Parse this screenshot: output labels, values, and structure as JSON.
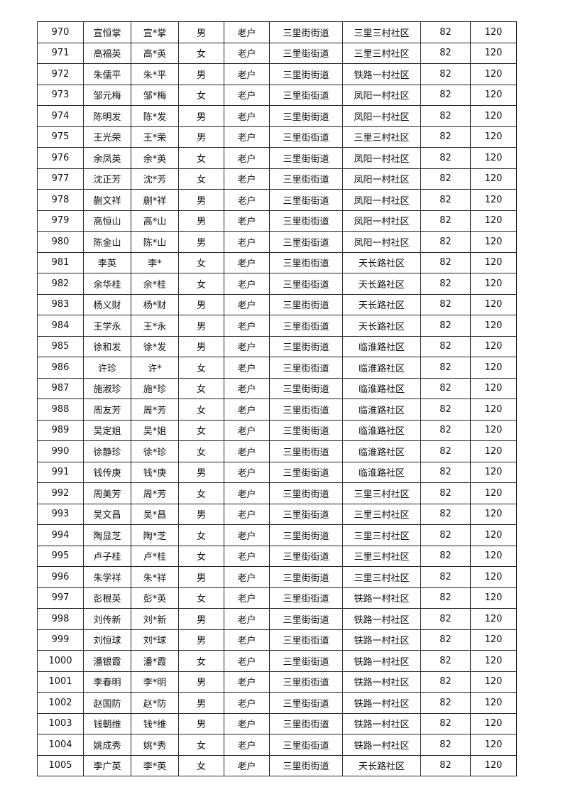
{
  "rows": [
    [
      "970",
      "宣恒掌",
      "宣*掌",
      "男",
      "老户",
      "三里街街道",
      "三里三村社区",
      "82",
      "120"
    ],
    [
      "971",
      "高福英",
      "高*英",
      "女",
      "老户",
      "三里街街道",
      "三里三村社区",
      "82",
      "120"
    ],
    [
      "972",
      "朱儒平",
      "朱*平",
      "男",
      "老户",
      "三里街街道",
      "铁路一村社区",
      "82",
      "120"
    ],
    [
      "973",
      "邹元梅",
      "邹*梅",
      "女",
      "老户",
      "三里街街道",
      "凤阳一村社区",
      "82",
      "120"
    ],
    [
      "974",
      "陈明发",
      "陈*发",
      "男",
      "老户",
      "三里街街道",
      "凤阳一村社区",
      "82",
      "120"
    ],
    [
      "975",
      "王光荣",
      "王*荣",
      "男",
      "老户",
      "三里街街道",
      "三里三村社区",
      "82",
      "120"
    ],
    [
      "976",
      "余凤英",
      "余*英",
      "女",
      "老户",
      "三里街街道",
      "凤阳一村社区",
      "82",
      "120"
    ],
    [
      "977",
      "沈正芳",
      "沈*芳",
      "女",
      "老户",
      "三里街街道",
      "凤阳一村社区",
      "82",
      "120"
    ],
    [
      "978",
      "蒯文祥",
      "蒯*祥",
      "男",
      "老户",
      "三里街街道",
      "凤阳一村社区",
      "82",
      "120"
    ],
    [
      "979",
      "高恒山",
      "高*山",
      "男",
      "老户",
      "三里街街道",
      "凤阳一村社区",
      "82",
      "120"
    ],
    [
      "980",
      "陈金山",
      "陈*山",
      "男",
      "老户",
      "三里街街道",
      "凤阳一村社区",
      "82",
      "120"
    ],
    [
      "981",
      "李英",
      "李*",
      "女",
      "老户",
      "三里街街道",
      "天长路社区",
      "82",
      "120"
    ],
    [
      "982",
      "余华桂",
      "余*桂",
      "女",
      "老户",
      "三里街街道",
      "天长路社区",
      "82",
      "120"
    ],
    [
      "983",
      "杨义财",
      "杨*财",
      "男",
      "老户",
      "三里街街道",
      "天长路社区",
      "82",
      "120"
    ],
    [
      "984",
      "王学永",
      "王*永",
      "男",
      "老户",
      "三里街街道",
      "天长路社区",
      "82",
      "120"
    ],
    [
      "985",
      "徐和发",
      "徐*发",
      "男",
      "老户",
      "三里街街道",
      "临淮路社区",
      "82",
      "120"
    ],
    [
      "986",
      "许珍",
      "许*",
      "女",
      "老户",
      "三里街街道",
      "临淮路社区",
      "82",
      "120"
    ],
    [
      "987",
      "施淑珍",
      "施*珍",
      "女",
      "老户",
      "三里街街道",
      "临淮路社区",
      "82",
      "120"
    ],
    [
      "988",
      "周友芳",
      "周*芳",
      "女",
      "老户",
      "三里街街道",
      "临淮路社区",
      "82",
      "120"
    ],
    [
      "989",
      "吴定姐",
      "吴*姐",
      "女",
      "老户",
      "三里街街道",
      "临淮路社区",
      "82",
      "120"
    ],
    [
      "990",
      "徐静珍",
      "徐*珍",
      "女",
      "老户",
      "三里街街道",
      "临淮路社区",
      "82",
      "120"
    ],
    [
      "991",
      "钱传庚",
      "钱*庚",
      "男",
      "老户",
      "三里街街道",
      "临淮路社区",
      "82",
      "120"
    ],
    [
      "992",
      "周美芳",
      "周*芳",
      "女",
      "老户",
      "三里街街道",
      "三里三村社区",
      "82",
      "120"
    ],
    [
      "993",
      "吴文昌",
      "吴*昌",
      "男",
      "老户",
      "三里街街道",
      "三里三村社区",
      "82",
      "120"
    ],
    [
      "994",
      "陶显芝",
      "陶*芝",
      "女",
      "老户",
      "三里街街道",
      "三里三村社区",
      "82",
      "120"
    ],
    [
      "995",
      "卢子桂",
      "卢*桂",
      "女",
      "老户",
      "三里街街道",
      "三里三村社区",
      "82",
      "120"
    ],
    [
      "996",
      "朱学祥",
      "朱*祥",
      "男",
      "老户",
      "三里街街道",
      "三里三村社区",
      "82",
      "120"
    ],
    [
      "997",
      "彭根英",
      "彭*英",
      "女",
      "老户",
      "三里街街道",
      "铁路一村社区",
      "82",
      "120"
    ],
    [
      "998",
      "刘传新",
      "刘*新",
      "男",
      "老户",
      "三里街街道",
      "铁路一村社区",
      "82",
      "120"
    ],
    [
      "999",
      "刘恒球",
      "刘*球",
      "男",
      "老户",
      "三里街街道",
      "铁路一村社区",
      "82",
      "120"
    ],
    [
      "1000",
      "潘银霞",
      "潘*霞",
      "女",
      "老户",
      "三里街街道",
      "铁路一村社区",
      "82",
      "120"
    ],
    [
      "1001",
      "李春明",
      "李*明",
      "男",
      "老户",
      "三里街街道",
      "铁路一村社区",
      "82",
      "120"
    ],
    [
      "1002",
      "赵国防",
      "赵*防",
      "男",
      "老户",
      "三里街街道",
      "铁路一村社区",
      "82",
      "120"
    ],
    [
      "1003",
      "钱朝维",
      "钱*维",
      "男",
      "老户",
      "三里街街道",
      "铁路一村社区",
      "82",
      "120"
    ],
    [
      "1004",
      "姚成秀",
      "姚*秀",
      "女",
      "老户",
      "三里街街道",
      "铁路一村社区",
      "82",
      "120"
    ],
    [
      "1005",
      "李广英",
      "李*英",
      "女",
      "老户",
      "三里街街道",
      "天长路社区",
      "82",
      "120"
    ]
  ]
}
